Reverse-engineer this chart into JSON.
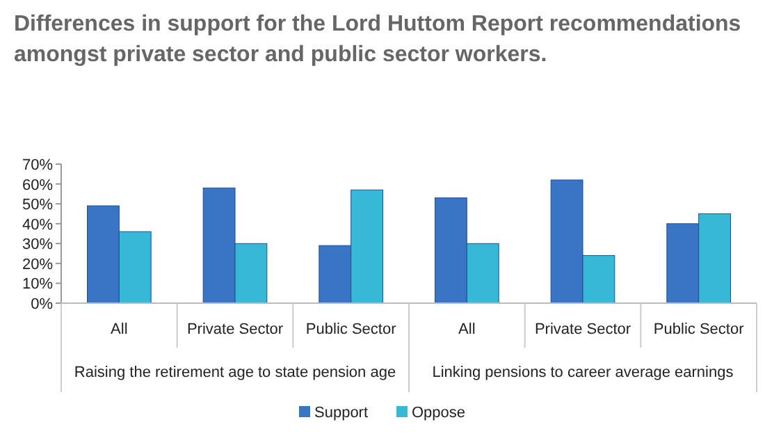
{
  "chart_data": {
    "type": "bar",
    "title": "Differences in support for the Lord Huttom Report recommendations amongst private sector and public sector workers.",
    "categories": [
      "All",
      "Private Sector",
      "Public Sector",
      "All",
      "Private Sector",
      "Public Sector"
    ],
    "annotations": [
      "Raising the retirement age to state pension age",
      "Linking pensions to career average earnings"
    ],
    "series": [
      {
        "name": "Support",
        "color": "#3a74c4",
        "values": [
          49,
          58,
          29,
          53,
          62,
          40
        ]
      },
      {
        "name": "Oppose",
        "color": "#36b8d6",
        "values": [
          36,
          30,
          57,
          30,
          24,
          45
        ]
      }
    ],
    "ylim": [
      0,
      70
    ],
    "yticks": [
      {
        "value": 0,
        "label": "0%"
      },
      {
        "value": 10,
        "label": "10%"
      },
      {
        "value": 20,
        "label": "20%"
      },
      {
        "value": 30,
        "label": "30%"
      },
      {
        "value": 40,
        "label": "40%"
      },
      {
        "value": 50,
        "label": "50%"
      },
      {
        "value": 60,
        "label": "60%"
      },
      {
        "value": 70,
        "label": "70%"
      }
    ],
    "legend": "bottom"
  }
}
